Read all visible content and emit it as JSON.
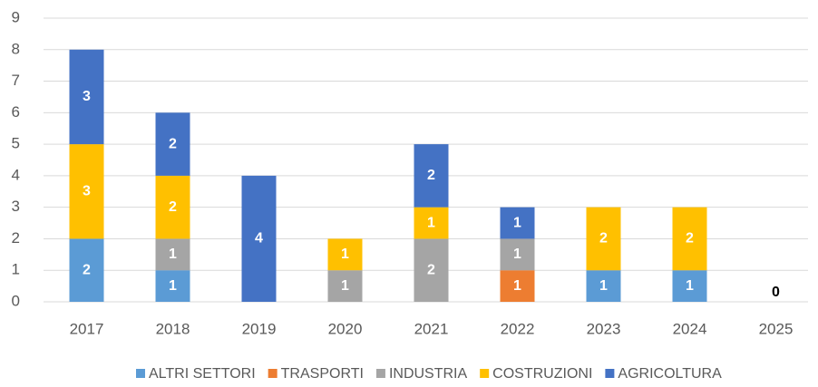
{
  "chart_data": {
    "type": "stacked_bar",
    "categories": [
      "2017",
      "2018",
      "2019",
      "2020",
      "2021",
      "2022",
      "2023",
      "2024",
      "2025"
    ],
    "series": [
      {
        "name": "ALTRI SETTORI",
        "color": "#5b9bd5",
        "values": [
          2,
          1,
          null,
          null,
          null,
          null,
          1,
          1,
          null
        ]
      },
      {
        "name": "TRASPORTI",
        "color": "#ed7d31",
        "values": [
          null,
          null,
          null,
          null,
          null,
          1,
          null,
          null,
          null
        ]
      },
      {
        "name": "INDUSTRIA",
        "color": "#a5a5a5",
        "values": [
          null,
          1,
          null,
          1,
          2,
          1,
          null,
          null,
          null
        ]
      },
      {
        "name": "COSTRUZIONI",
        "color": "#ffc000",
        "values": [
          3,
          2,
          null,
          1,
          1,
          null,
          2,
          2,
          null
        ]
      },
      {
        "name": "AGRICOLTURA",
        "color": "#4472c4",
        "values": [
          3,
          2,
          4,
          null,
          2,
          1,
          null,
          null,
          0
        ]
      }
    ],
    "ylim": [
      0,
      9
    ],
    "yticks": [
      0,
      1,
      2,
      3,
      4,
      5,
      6,
      7,
      8,
      9
    ],
    "grid": true,
    "legend": "bottom"
  }
}
